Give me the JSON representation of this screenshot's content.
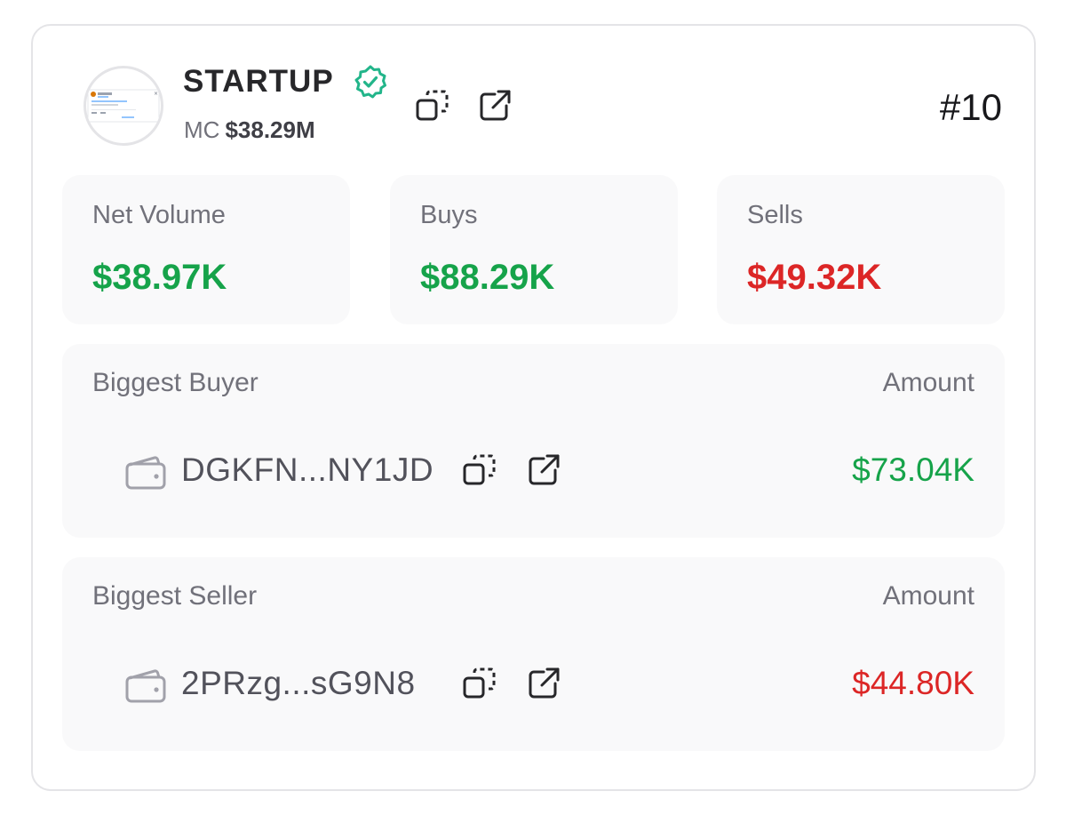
{
  "token": {
    "name": "STARTUP",
    "mc_label": "MC",
    "mc_value": "$38.29M",
    "rank": "#10"
  },
  "stats": {
    "net_volume": {
      "label": "Net Volume",
      "value": "$38.97K"
    },
    "buys": {
      "label": "Buys",
      "value": "$88.29K"
    },
    "sells": {
      "label": "Sells",
      "value": "$49.32K"
    }
  },
  "biggest_buyer": {
    "title": "Biggest Buyer",
    "amount_label": "Amount",
    "address": "DGKFN...NY1JD",
    "amount": "$73.04K"
  },
  "biggest_seller": {
    "title": "Biggest Seller",
    "amount_label": "Amount",
    "address": "2PRzg...sG9N8",
    "amount": "$44.80K"
  },
  "colors": {
    "positive": "#16a34a",
    "negative": "#dc2626",
    "verified": "#22b58a"
  },
  "icons": [
    "token-avatar",
    "verified-badge-icon",
    "copy-icon",
    "external-link-icon",
    "wallet-icon"
  ]
}
